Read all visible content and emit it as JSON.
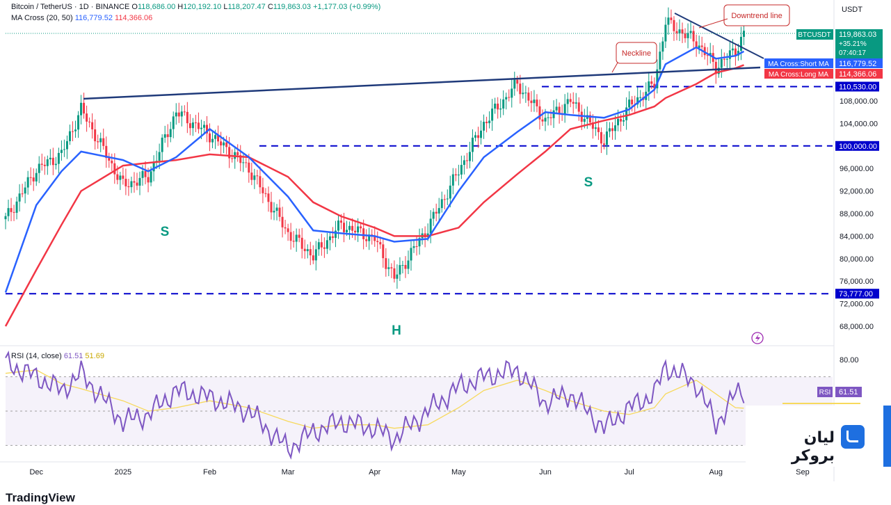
{
  "header": {
    "symbol_line": "Bitcoin / TetherUS · 1D · BINANCE",
    "o_label": "O",
    "o_value": "118,686.00",
    "h_label": "H",
    "h_value": "120,192.10",
    "l_label": "L",
    "l_value": "118,207.47",
    "c_label": "C",
    "c_value": "119,863.03",
    "change": "+1,177.03 (+0.99%)",
    "ma_label": "MA Cross (20, 50)",
    "ma_short_value": "116,779.52",
    "ma_long_value": "114,366.06",
    "currency": "USDT"
  },
  "price_axis": {
    "ticks": [
      "108,000.00",
      "104,000.00",
      "100,000.00",
      "96,000.00",
      "92,000.00",
      "88,000.00",
      "84,000.00",
      "80,000.00",
      "76,000.00",
      "72,000.00",
      "68,000.00"
    ],
    "tick_values": [
      108000,
      104000,
      100000,
      96000,
      92000,
      88000,
      84000,
      80000,
      76000,
      72000,
      68000
    ]
  },
  "time_axis": {
    "labels": [
      "Dec",
      "2025",
      "Feb",
      "Mar",
      "Apr",
      "May",
      "Jun",
      "Jul",
      "Aug",
      "Sep"
    ]
  },
  "tags": {
    "symbol": "BTCUSDT",
    "price": "119,863.03",
    "change_pct": "+35.21%",
    "countdown": "07:40:17",
    "short_ma_label": "MA Cross:Short MA",
    "short_ma_value": "116,779.52",
    "long_ma_label": "MA Cross:Long MA",
    "long_ma_value": "114,366.06",
    "level_110": "110,530.00",
    "level_100": "100,000.00",
    "level_73": "73,777.00",
    "rsi_label": "RSI",
    "rsi_value": "61.51"
  },
  "rsi": {
    "legend_name": "RSI (14, close)",
    "legend_value": "61.51",
    "legend_ma": "51.69",
    "axis_label": "80.00"
  },
  "annotations": {
    "neckline": "Neckline",
    "downtrend": "Downtrend line",
    "left_shoulder": "S",
    "head": "H",
    "right_shoulder": "S"
  },
  "brand": {
    "name": "لیان بروکر",
    "tradingview": "TradingView"
  },
  "colors": {
    "up": "#089981",
    "down": "#f23645",
    "short_ma": "#2962ff",
    "long_ma": "#f23645",
    "level_line": "#0000cc",
    "trend_line": "#1f3a7a",
    "rsi": "#7e57c2",
    "rsi_ma": "#f7d95c"
  },
  "chart_data": [
    {
      "type": "line",
      "title": "Bitcoin / TetherUS · 1D · BINANCE",
      "x": [
        "2024-11-20",
        "2024-12-01",
        "2024-12-10",
        "2024-12-17",
        "2025-01-01",
        "2025-01-10",
        "2025-01-20",
        "2025-02-01",
        "2025-02-15",
        "2025-03-01",
        "2025-03-10",
        "2025-03-20",
        "2025-04-01",
        "2025-04-08",
        "2025-04-20",
        "2025-05-01",
        "2025-05-10",
        "2025-05-22",
        "2025-06-01",
        "2025-06-10",
        "2025-06-22",
        "2025-07-01",
        "2025-07-10",
        "2025-07-14",
        "2025-07-25",
        "2025-08-01",
        "2025-08-08",
        "2025-08-11"
      ],
      "series": [
        {
          "name": "BTCUSDT",
          "values": [
            87000,
            95800,
            98500,
            106500,
            93000,
            94500,
            106000,
            102000,
            96000,
            84500,
            80500,
            86000,
            83500,
            76500,
            85500,
            95500,
            104000,
            111000,
            104500,
            108000,
            101000,
            107000,
            111000,
            122000,
            118500,
            114000,
            117000,
            119863
          ]
        },
        {
          "name": "MA Cross:Short MA",
          "values": [
            74000,
            89500,
            95500,
            99000,
            97500,
            95500,
            98000,
            103000,
            98000,
            91000,
            85000,
            84500,
            84000,
            83000,
            83500,
            92000,
            98000,
            102500,
            106000,
            105500,
            105000,
            106500,
            110000,
            114500,
            117500,
            115500,
            116000,
            116780
          ]
        },
        {
          "name": "MA Cross:Long MA",
          "values": [
            68000,
            78000,
            86000,
            92000,
            96500,
            97000,
            97500,
            98500,
            98000,
            94500,
            90000,
            87500,
            85500,
            84000,
            84000,
            85500,
            90000,
            95000,
            99000,
            103000,
            104500,
            105500,
            107000,
            108500,
            111000,
            113000,
            113800,
            114366
          ]
        }
      ],
      "levels": [
        110530,
        100000,
        73777
      ],
      "ylim": [
        66000,
        124000
      ],
      "xlabels": [
        "Dec",
        "2025",
        "Feb",
        "Mar",
        "Apr",
        "May",
        "Jun",
        "Jul",
        "Aug",
        "Sep"
      ]
    },
    {
      "type": "line",
      "title": "RSI (14, close)",
      "x": [
        "2024-11-20",
        "2024-12-01",
        "2024-12-10",
        "2024-12-17",
        "2025-01-01",
        "2025-01-10",
        "2025-01-20",
        "2025-02-01",
        "2025-02-15",
        "2025-03-01",
        "2025-03-10",
        "2025-03-20",
        "2025-04-01",
        "2025-04-08",
        "2025-04-20",
        "2025-05-01",
        "2025-05-10",
        "2025-05-22",
        "2025-06-01",
        "2025-06-10",
        "2025-06-22",
        "2025-07-01",
        "2025-07-10",
        "2025-07-14",
        "2025-07-25",
        "2025-08-01",
        "2025-08-08",
        "2025-08-11"
      ],
      "series": [
        {
          "name": "RSI",
          "values": [
            78,
            70,
            62,
            72,
            44,
            48,
            62,
            58,
            50,
            28,
            38,
            44,
            40,
            34,
            50,
            64,
            70,
            74,
            55,
            60,
            40,
            52,
            60,
            76,
            66,
            42,
            60,
            61.51
          ]
        },
        {
          "name": "RSI MA",
          "values": [
            72,
            74,
            66,
            63,
            56,
            50,
            52,
            56,
            52,
            44,
            40,
            42,
            42,
            40,
            42,
            52,
            62,
            68,
            62,
            56,
            50,
            48,
            52,
            60,
            68,
            60,
            52,
            51.69
          ]
        }
      ],
      "ylim": [
        20,
        85
      ]
    }
  ]
}
